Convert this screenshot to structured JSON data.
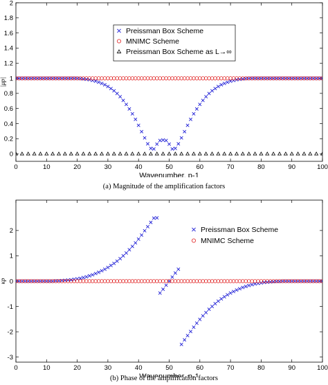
{
  "captions": {
    "a": "(a)  Magnitude of the amplification factors",
    "b": "(b)  Phase of the amplification factors"
  },
  "chart_data": [
    {
      "type": "scatter",
      "title": "",
      "xlabel": "Wavenumber, p-1",
      "ylabel": "|μp|",
      "xlim": [
        0,
        100
      ],
      "ylim": [
        -0.1,
        2.0
      ],
      "xticks": [
        0,
        10,
        20,
        30,
        40,
        50,
        60,
        70,
        80,
        90,
        100
      ],
      "yticks": [
        0,
        0.2,
        0.4,
        0.6,
        0.8,
        1,
        1.2,
        1.4,
        1.6,
        1.8,
        2
      ],
      "legend_position": "top-center",
      "series": [
        {
          "name": "Preissman Box Scheme",
          "marker": "x",
          "color": "#1f1fd6",
          "x": [
            0,
            1,
            2,
            3,
            4,
            5,
            6,
            7,
            8,
            9,
            10,
            11,
            12,
            13,
            14,
            15,
            16,
            17,
            18,
            19,
            20,
            21,
            22,
            23,
            24,
            25,
            26,
            27,
            28,
            29,
            30,
            31,
            32,
            33,
            34,
            35,
            36,
            37,
            38,
            39,
            40,
            41,
            42,
            43,
            44,
            45,
            46,
            47,
            48,
            49,
            50,
            51,
            52,
            53,
            54,
            55,
            56,
            57,
            58,
            59,
            60,
            61,
            62,
            63,
            64,
            65,
            66,
            67,
            68,
            69,
            70,
            71,
            72,
            73,
            74,
            75,
            76,
            77,
            78,
            79,
            80,
            81,
            82,
            83,
            84,
            85,
            86,
            87,
            88,
            89,
            90,
            91,
            92,
            93,
            94,
            95,
            96,
            97,
            98,
            99,
            100
          ],
          "y": [
            1,
            1,
            1,
            1,
            1,
            1,
            1,
            1,
            1,
            1,
            1,
            1,
            1,
            1,
            1,
            1,
            1,
            1,
            1,
            1,
            0.999,
            0.997,
            0.992,
            0.987,
            0.981,
            0.972,
            0.962,
            0.948,
            0.932,
            0.914,
            0.891,
            0.864,
            0.834,
            0.799,
            0.756,
            0.707,
            0.654,
            0.594,
            0.529,
            0.456,
            0.377,
            0.293,
            0.211,
            0.132,
            0.072,
            0.064,
            0.128,
            0.176,
            0.182,
            0.176,
            0.128,
            0.064,
            0.072,
            0.132,
            0.211,
            0.293,
            0.377,
            0.456,
            0.529,
            0.594,
            0.654,
            0.707,
            0.756,
            0.799,
            0.834,
            0.864,
            0.891,
            0.914,
            0.932,
            0.948,
            0.962,
            0.972,
            0.981,
            0.987,
            0.992,
            0.997,
            0.999,
            1,
            1,
            1,
            1,
            1,
            1,
            1,
            1,
            1,
            1,
            1,
            1,
            1,
            1,
            1,
            1,
            1,
            1,
            1,
            1,
            1,
            1,
            1,
            1
          ]
        },
        {
          "name": "MNIMC Scheme",
          "marker": "o",
          "color": "#e02020",
          "x": [
            0,
            1,
            2,
            3,
            4,
            5,
            6,
            7,
            8,
            9,
            10,
            11,
            12,
            13,
            14,
            15,
            16,
            17,
            18,
            19,
            20,
            21,
            22,
            23,
            24,
            25,
            26,
            27,
            28,
            29,
            30,
            31,
            32,
            33,
            34,
            35,
            36,
            37,
            38,
            39,
            40,
            41,
            42,
            43,
            44,
            45,
            46,
            47,
            48,
            49,
            50,
            51,
            52,
            53,
            54,
            55,
            56,
            57,
            58,
            59,
            60,
            61,
            62,
            63,
            64,
            65,
            66,
            67,
            68,
            69,
            70,
            71,
            72,
            73,
            74,
            75,
            76,
            77,
            78,
            79,
            80,
            81,
            82,
            83,
            84,
            85,
            86,
            87,
            88,
            89,
            90,
            91,
            92,
            93,
            94,
            95,
            96,
            97,
            98,
            99,
            100
          ],
          "y": [
            1,
            1,
            1,
            1,
            1,
            1,
            1,
            1,
            1,
            1,
            1,
            1,
            1,
            1,
            1,
            1,
            1,
            1,
            1,
            1,
            1,
            1,
            1,
            1,
            1,
            1,
            1,
            1,
            1,
            1,
            1,
            1,
            1,
            1,
            1,
            1,
            1,
            1,
            1,
            1,
            1,
            1,
            1,
            1,
            1,
            1,
            1,
            1,
            1,
            1,
            1,
            1,
            1,
            1,
            1,
            1,
            1,
            1,
            1,
            1,
            1,
            1,
            1,
            1,
            1,
            1,
            1,
            1,
            1,
            1,
            1,
            1,
            1,
            1,
            1,
            1,
            1,
            1,
            1,
            1,
            1,
            1,
            1,
            1,
            1,
            1,
            1,
            1,
            1,
            1,
            1,
            1,
            1,
            1,
            1,
            1,
            1,
            1,
            1,
            1,
            1
          ]
        },
        {
          "name": "Preissman Box Scheme as L→∞",
          "marker": "triangle",
          "color": "#000000",
          "x": [
            0,
            2,
            4,
            6,
            8,
            10,
            12,
            14,
            16,
            18,
            20,
            22,
            24,
            26,
            28,
            30,
            32,
            34,
            36,
            38,
            40,
            42,
            44,
            46,
            48,
            50,
            52,
            54,
            56,
            58,
            60,
            62,
            64,
            66,
            68,
            70,
            72,
            74,
            76,
            78,
            80,
            82,
            84,
            86,
            88,
            90,
            92,
            94,
            96,
            98,
            100
          ],
          "y": [
            0,
            0,
            0,
            0,
            0,
            0,
            0,
            0,
            0,
            0,
            0,
            0,
            0,
            0,
            0,
            0,
            0,
            0,
            0,
            0,
            0,
            0,
            0,
            0,
            0,
            0,
            0,
            0,
            0,
            0,
            0,
            0,
            0,
            0,
            0,
            0,
            0,
            0,
            0,
            0,
            0,
            0,
            0,
            0,
            0,
            0,
            0,
            0,
            0,
            0,
            0
          ]
        }
      ]
    },
    {
      "type": "scatter",
      "title": "",
      "xlabel": "Wavenumber, p-1",
      "ylabel": "κp",
      "xlim": [
        0,
        100
      ],
      "ylim": [
        -3.2,
        3.2
      ],
      "xticks": [
        0,
        10,
        20,
        30,
        40,
        50,
        60,
        70,
        80,
        90,
        100
      ],
      "yticks": [
        -3,
        -2,
        -1,
        0,
        1,
        2
      ],
      "legend_position": "top-right",
      "series": [
        {
          "name": "Preissman Box Scheme",
          "marker": "x",
          "color": "#1f1fd6",
          "x": [
            0,
            1,
            2,
            3,
            4,
            5,
            6,
            7,
            8,
            9,
            10,
            11,
            12,
            13,
            14,
            15,
            16,
            17,
            18,
            19,
            20,
            21,
            22,
            23,
            24,
            25,
            26,
            27,
            28,
            29,
            30,
            31,
            32,
            33,
            34,
            35,
            36,
            37,
            38,
            39,
            40,
            41,
            42,
            43,
            44,
            45,
            46,
            47,
            48,
            49,
            50,
            51,
            52,
            53,
            54,
            55,
            56,
            57,
            58,
            59,
            60,
            61,
            62,
            63,
            64,
            65,
            66,
            67,
            68,
            69,
            70,
            71,
            72,
            73,
            74,
            75,
            76,
            77,
            78,
            79,
            80,
            81,
            82,
            83,
            84,
            85,
            86,
            87,
            88,
            89,
            90,
            91,
            92,
            93,
            94,
            95,
            96,
            97,
            98,
            99,
            100
          ],
          "y": [
            0,
            0,
            0,
            0,
            0,
            0,
            0,
            0,
            0,
            0,
            0,
            0,
            0,
            0.01,
            0.01,
            0.02,
            0.03,
            0.04,
            0.05,
            0.07,
            0.09,
            0.11,
            0.14,
            0.17,
            0.21,
            0.25,
            0.3,
            0.35,
            0.41,
            0.47,
            0.54,
            0.62,
            0.7,
            0.79,
            0.89,
            1,
            1.11,
            1.24,
            1.37,
            1.51,
            1.66,
            1.82,
            1.99,
            2.15,
            2.32,
            2.49,
            2.5,
            -0.47,
            -0.32,
            -0.16,
            0,
            0.16,
            0.32,
            0.47,
            -2.5,
            -2.32,
            -2.15,
            -1.99,
            -1.82,
            -1.66,
            -1.51,
            -1.37,
            -1.24,
            -1.11,
            -1,
            -0.89,
            -0.79,
            -0.7,
            -0.62,
            -0.54,
            -0.47,
            -0.41,
            -0.35,
            -0.3,
            -0.25,
            -0.21,
            -0.17,
            -0.14,
            -0.11,
            -0.09,
            -0.07,
            -0.05,
            -0.04,
            -0.03,
            -0.02,
            -0.01,
            -0.01,
            0,
            0,
            0,
            0,
            0,
            0,
            0,
            0,
            0,
            0,
            0,
            0,
            0,
            0
          ]
        },
        {
          "name": "MNIMC Scheme",
          "marker": "o",
          "color": "#e02020",
          "x": [
            0,
            1,
            2,
            3,
            4,
            5,
            6,
            7,
            8,
            9,
            10,
            11,
            12,
            13,
            14,
            15,
            16,
            17,
            18,
            19,
            20,
            21,
            22,
            23,
            24,
            25,
            26,
            27,
            28,
            29,
            30,
            31,
            32,
            33,
            34,
            35,
            36,
            37,
            38,
            39,
            40,
            41,
            42,
            43,
            44,
            45,
            46,
            47,
            48,
            49,
            50,
            51,
            52,
            53,
            54,
            55,
            56,
            57,
            58,
            59,
            60,
            61,
            62,
            63,
            64,
            65,
            66,
            67,
            68,
            69,
            70,
            71,
            72,
            73,
            74,
            75,
            76,
            77,
            78,
            79,
            80,
            81,
            82,
            83,
            84,
            85,
            86,
            87,
            88,
            89,
            90,
            91,
            92,
            93,
            94,
            95,
            96,
            97,
            98,
            99,
            100
          ],
          "y": [
            0,
            0,
            0,
            0,
            0,
            0,
            0,
            0,
            0,
            0,
            0,
            0,
            0,
            0,
            0,
            0,
            0,
            0,
            0,
            0,
            0,
            0,
            0,
            0,
            0,
            0,
            0,
            0,
            0,
            0,
            0,
            0,
            0,
            0,
            0,
            0,
            0,
            0,
            0,
            0,
            0,
            0,
            0,
            0,
            0,
            0,
            0,
            0,
            0,
            0,
            0,
            0,
            0,
            0,
            0,
            0,
            0,
            0,
            0,
            0,
            0,
            0,
            0,
            0,
            0,
            0,
            0,
            0,
            0,
            0,
            0,
            0,
            0,
            0,
            0,
            0,
            0,
            0,
            0,
            0,
            0,
            0,
            0,
            0,
            0,
            0,
            0,
            0,
            0,
            0,
            0,
            0,
            0,
            0,
            0,
            0,
            0,
            0,
            0,
            0,
            0
          ]
        }
      ]
    }
  ]
}
